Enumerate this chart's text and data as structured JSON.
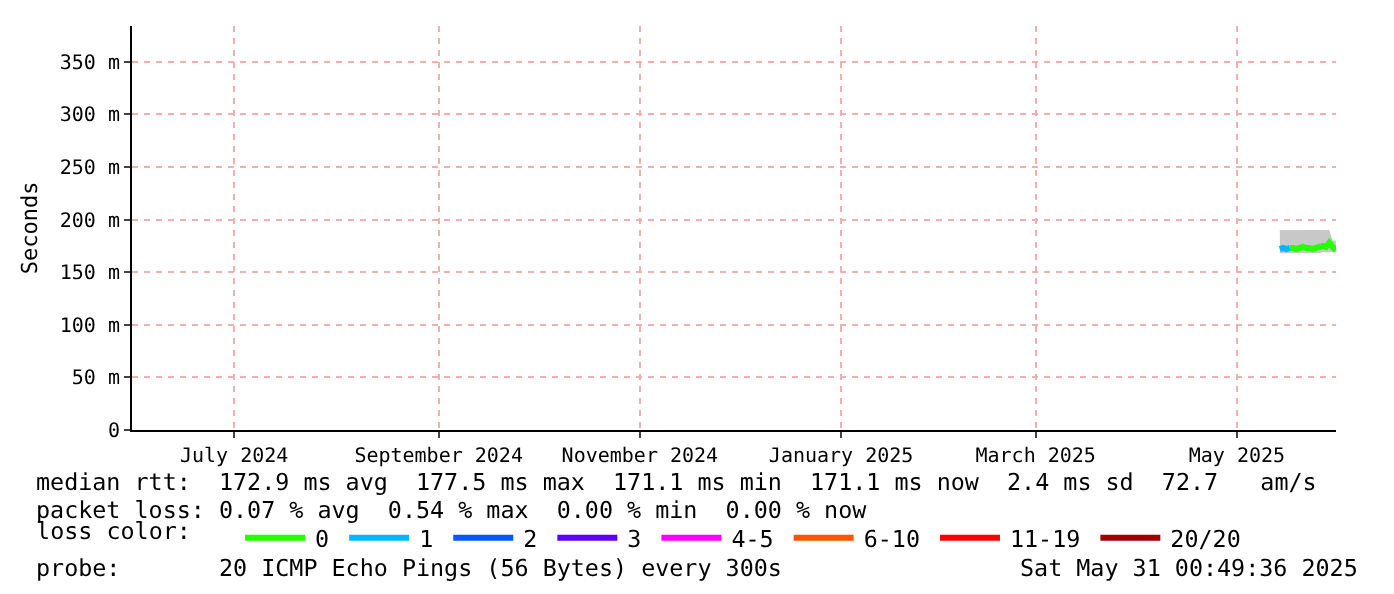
{
  "chart_data": {
    "type": "line",
    "ylabel": "Seconds",
    "legend_title": "loss color:",
    "legend": "bottom",
    "grid": true,
    "marker": "none",
    "line_style": "solid",
    "x": [
      "2025-05-14",
      "2025-05-15",
      "2025-05-16",
      "2025-05-17",
      "2025-05-18",
      "2025-05-19",
      "2025-05-20",
      "2025-05-21",
      "2025-05-22",
      "2025-05-23",
      "2025-05-24",
      "2025-05-25",
      "2025-05-26",
      "2025-05-27",
      "2025-05-28",
      "2025-05-29",
      "2025-05-30",
      "2025-05-31"
    ],
    "xlim": [
      "2024-05-31T00:49",
      "2025-05-31T00:49"
    ],
    "xticks": [
      {
        "value": "2024-07-01",
        "label": "July 2024"
      },
      {
        "value": "2024-09-01",
        "label": "September 2024"
      },
      {
        "value": "2024-11-01",
        "label": "November 2024"
      },
      {
        "value": "2025-01-01",
        "label": "January 2025"
      },
      {
        "value": "2025-03-01",
        "label": "March 2025"
      },
      {
        "value": "2025-05-01",
        "label": "May 2025"
      }
    ],
    "ylim": [
      0,
      384
    ],
    "yticks": [
      0,
      {
        "value": 50,
        "label": "50 m"
      },
      {
        "value": 100,
        "label": "100 m"
      },
      {
        "value": 150,
        "label": "150 m"
      },
      {
        "value": 200,
        "label": "200 m"
      },
      {
        "value": 250,
        "label": "250 m"
      },
      {
        "value": 300,
        "label": "300 m"
      },
      {
        "value": 350,
        "label": "350 m"
      }
    ],
    "series": [
      {
        "name": "0",
        "color": "#26ff00",
        "values": [
          null,
          null,
          null,
          173,
          173,
          172,
          173,
          174,
          173,
          173,
          172,
          173,
          174,
          175,
          174,
          178,
          174,
          171
        ],
        "lower": [
          168,
          168,
          168,
          168,
          168,
          168,
          168,
          168,
          168,
          168,
          168,
          168,
          168,
          169,
          169,
          169,
          169,
          169
        ],
        "upper": [
          190,
          190,
          190,
          190,
          190,
          190,
          190,
          190,
          190,
          190,
          190,
          190,
          190,
          190,
          190,
          190,
          180,
          180
        ]
      },
      {
        "name": "1",
        "color": "#00b8ff",
        "values": [
          172,
          173,
          172,
          173,
          null,
          null,
          null,
          null,
          null,
          null,
          null,
          null,
          null,
          null,
          null,
          null,
          null,
          null
        ]
      },
      {
        "name": "2",
        "color": "#0059ff",
        "values": [
          null,
          null,
          null,
          null,
          null,
          null,
          null,
          null,
          null,
          null,
          null,
          null,
          null,
          null,
          null,
          null,
          null,
          null
        ]
      },
      {
        "name": "3",
        "color": "#5e00ff",
        "values": [
          null,
          null,
          null,
          null,
          null,
          null,
          null,
          null,
          null,
          null,
          null,
          null,
          null,
          null,
          null,
          null,
          null,
          null
        ]
      },
      {
        "name": "4-5",
        "color": "#ff00ff",
        "values": [
          null,
          null,
          null,
          null,
          null,
          null,
          null,
          null,
          null,
          null,
          null,
          null,
          null,
          null,
          null,
          null,
          null,
          null
        ]
      },
      {
        "name": "6-10",
        "color": "#ff5500",
        "values": [
          null,
          null,
          null,
          null,
          null,
          null,
          null,
          null,
          null,
          null,
          null,
          null,
          null,
          null,
          null,
          null,
          null,
          null
        ]
      },
      {
        "name": "11-19",
        "color": "#ff0000",
        "values": [
          null,
          null,
          null,
          null,
          null,
          null,
          null,
          null,
          null,
          null,
          null,
          null,
          null,
          null,
          null,
          null,
          null,
          null
        ]
      },
      {
        "name": "20/20",
        "color": "#a10000",
        "values": [
          null,
          null,
          null,
          null,
          null,
          null,
          null,
          null,
          null,
          null,
          null,
          null,
          null,
          null,
          null,
          null,
          null,
          null
        ]
      }
    ],
    "annotations": [
      "median rtt:  172.9 ms avg  177.5 ms max  171.1 ms min  171.1 ms now  2.4 ms sd  72.7   am/s",
      "packet loss: 0.07 % avg  0.54 % max  0.00 % min  0.00 % now",
      "probe:       20 ICMP Echo Pings (56 Bytes) every 300s",
      "Sat May 31 00:49:36 2025"
    ]
  }
}
